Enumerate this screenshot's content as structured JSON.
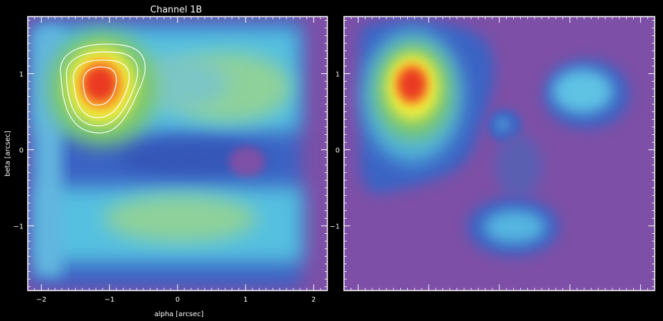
{
  "chart_data": [
    {
      "type": "heatmap",
      "title": "Channel 1B",
      "xlabel": "alpha [arcsec]",
      "ylabel": "beta [arcsec]",
      "xlim": [
        -2.2,
        2.2
      ],
      "ylim": [
        -1.85,
        1.75
      ],
      "xticks": [
        -2,
        -1,
        0,
        1,
        2
      ],
      "yticks": [
        -1,
        0,
        1
      ],
      "background_color": "#7d4fa6",
      "frame_color": "#ffffff",
      "contours": true,
      "features": [
        {
          "x": -1.25,
          "y": 0.95,
          "peak": "red"
        },
        {
          "x": 1.0,
          "y": 1.0,
          "peak": "green"
        },
        {
          "x": 0.0,
          "y": -0.8,
          "peak": "green"
        }
      ]
    },
    {
      "type": "heatmap",
      "title": "",
      "xlabel": "",
      "ylabel": "",
      "ylim": [
        -1.85,
        1.75
      ],
      "yticks": [
        -1,
        0,
        1
      ],
      "background_color": "#7d4fa6",
      "frame_color": "#ffffff",
      "contours": false,
      "features": [
        {
          "x": -1.2,
          "y": 0.9,
          "peak": "red"
        },
        {
          "x": 1.15,
          "y": 0.8,
          "peak": "cyan"
        },
        {
          "x": 0.15,
          "y": 0.35,
          "peak": "blue"
        },
        {
          "x": 0.3,
          "y": -1.0,
          "peak": "cyan"
        }
      ]
    }
  ]
}
